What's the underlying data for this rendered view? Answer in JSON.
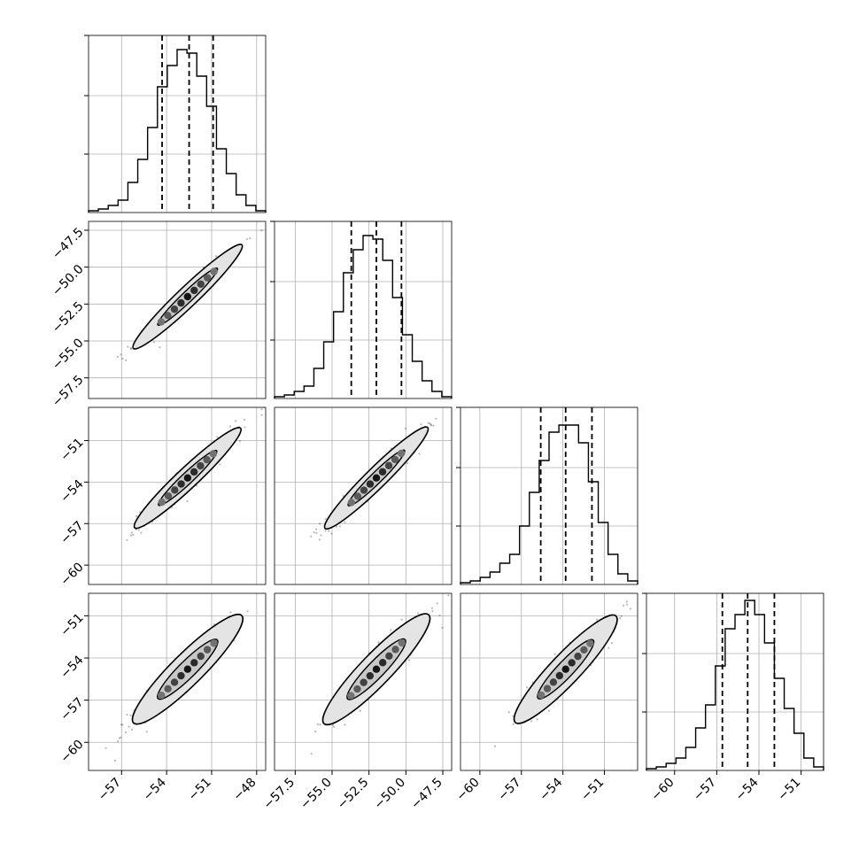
{
  "chart_data": {
    "type": "corner",
    "n_params": 4,
    "grid": true,
    "params": [
      {
        "range": [
          -59.2,
          -47.4
        ],
        "ticks": [
          -57,
          -54,
          -51,
          -48
        ],
        "tick_labels": [
          "−57",
          "−54",
          "−51",
          "−48"
        ],
        "quantiles": [
          -54.3,
          -52.5,
          -50.9
        ],
        "hist": [
          0.01,
          0.02,
          0.04,
          0.07,
          0.17,
          0.3,
          0.48,
          0.71,
          0.83,
          0.92,
          0.9,
          0.77,
          0.6,
          0.36,
          0.22,
          0.1,
          0.04,
          0.01
        ]
      },
      {
        "range": [
          -58.9,
          -46.9
        ],
        "ticks": [
          -57.5,
          -55.0,
          -52.5,
          -50.0,
          -47.5
        ],
        "tick_labels": [
          "−57.5",
          "−55.0",
          "−52.5",
          "−50.0",
          "−47.5"
        ],
        "quantiles": [
          -53.7,
          -52.0,
          -50.3
        ],
        "hist": [
          0.01,
          0.02,
          0.04,
          0.07,
          0.17,
          0.32,
          0.49,
          0.71,
          0.84,
          0.92,
          0.9,
          0.78,
          0.57,
          0.36,
          0.21,
          0.1,
          0.04,
          0.01
        ]
      },
      {
        "range": [
          -61.4,
          -48.6
        ],
        "ticks": [
          -60,
          -57,
          -54,
          -51
        ],
        "tick_labels": [
          "−60",
          "−57",
          "−54",
          "−51"
        ],
        "quantiles": [
          -55.6,
          -53.8,
          -51.9
        ],
        "hist": [
          0.01,
          0.02,
          0.04,
          0.07,
          0.12,
          0.17,
          0.33,
          0.52,
          0.7,
          0.86,
          0.9,
          0.9,
          0.8,
          0.58,
          0.35,
          0.17,
          0.06,
          0.02
        ]
      },
      {
        "range": [
          -62.0,
          -49.4
        ],
        "ticks": [
          -60,
          -57,
          -54,
          -51
        ],
        "tick_labels": [
          "−60",
          "−57",
          "−54",
          "−51"
        ],
        "quantiles": [
          -56.6,
          -54.8,
          -52.9
        ],
        "hist": [
          0.01,
          0.02,
          0.04,
          0.07,
          0.13,
          0.24,
          0.37,
          0.59,
          0.8,
          0.88,
          0.96,
          0.88,
          0.72,
          0.52,
          0.35,
          0.21,
          0.07,
          0.02
        ]
      }
    ],
    "hist_yticks": [
      0.33,
      0.66,
      1.0
    ],
    "joint": [
      {
        "row": 1,
        "col": 0,
        "mean_x": -52.6,
        "mean_y": -52.0,
        "dir": [
          1,
          0.97
        ],
        "sd_major": 2.4,
        "sd_minor": 0.28
      },
      {
        "row": 2,
        "col": 0,
        "mean_x": -52.6,
        "mean_y": -53.7,
        "dir": [
          1,
          1.02
        ],
        "sd_major": 2.4,
        "sd_minor": 0.3
      },
      {
        "row": 2,
        "col": 1,
        "mean_x": -52.0,
        "mean_y": -53.7,
        "dir": [
          1,
          1.05
        ],
        "sd_major": 2.4,
        "sd_minor": 0.3
      },
      {
        "row": 3,
        "col": 0,
        "mean_x": -52.6,
        "mean_y": -54.8,
        "dir": [
          1,
          1.06
        ],
        "sd_major": 2.5,
        "sd_minor": 0.45
      },
      {
        "row": 3,
        "col": 1,
        "mean_x": -52.0,
        "mean_y": -54.8,
        "dir": [
          1,
          1.09
        ],
        "sd_major": 2.5,
        "sd_minor": 0.45
      },
      {
        "row": 3,
        "col": 2,
        "mean_x": -53.8,
        "mean_y": -54.8,
        "dir": [
          1,
          1.04
        ],
        "sd_major": 2.5,
        "sd_minor": 0.45
      }
    ]
  }
}
